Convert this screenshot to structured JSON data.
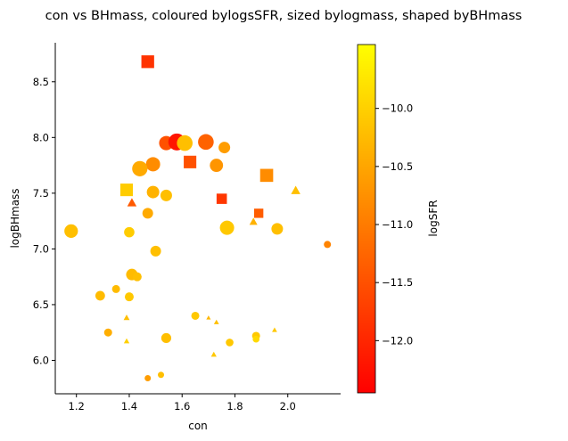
{
  "chart_data": {
    "type": "scatter",
    "title": "con vs BHmass, coloured bylogsSFR, sized bylogmass, shaped byBHmass",
    "xlabel": "con",
    "ylabel": "logBHmass",
    "xlim": [
      1.12,
      2.2
    ],
    "ylim": [
      5.7,
      8.85
    ],
    "x_ticks": [
      1.2,
      1.4,
      1.6,
      1.8,
      2.0
    ],
    "y_ticks": [
      6.0,
      6.5,
      7.0,
      7.5,
      8.0,
      8.5
    ],
    "grid": false,
    "colorbar": {
      "label": "logSFR",
      "range": [
        -12.45,
        -9.45
      ],
      "ticks": [
        -10.0,
        -10.5,
        -11.0,
        -11.5,
        -12.0
      ],
      "colormap": "autumn",
      "colors": [
        "#ff0000",
        "#ffff00"
      ]
    },
    "points": [
      {
        "x": 1.47,
        "y": 8.68,
        "c": -11.85,
        "s": 8.4,
        "m": "square"
      },
      {
        "x": 1.54,
        "y": 7.95,
        "c": -11.5,
        "s": 8.0,
        "m": "circle"
      },
      {
        "x": 1.58,
        "y": 7.96,
        "c": -12.2,
        "s": 9.5,
        "m": "circle"
      },
      {
        "x": 1.61,
        "y": 7.95,
        "c": -10.2,
        "s": 8.8,
        "m": "circle"
      },
      {
        "x": 1.69,
        "y": 7.96,
        "c": -11.3,
        "s": 8.8,
        "m": "circle"
      },
      {
        "x": 1.76,
        "y": 7.91,
        "c": -10.6,
        "s": 6.5,
        "m": "circle"
      },
      {
        "x": 1.49,
        "y": 7.76,
        "c": -10.8,
        "s": 8.0,
        "m": "circle"
      },
      {
        "x": 1.44,
        "y": 7.72,
        "c": -10.45,
        "s": 8.6,
        "m": "circle"
      },
      {
        "x": 1.63,
        "y": 7.78,
        "c": -11.5,
        "s": 8.3,
        "m": "square"
      },
      {
        "x": 1.73,
        "y": 7.75,
        "c": -10.7,
        "s": 7.4,
        "m": "circle"
      },
      {
        "x": 1.92,
        "y": 7.66,
        "c": -10.8,
        "s": 8.6,
        "m": "square"
      },
      {
        "x": 1.39,
        "y": 7.53,
        "c": -10.05,
        "s": 8.3,
        "m": "square"
      },
      {
        "x": 1.49,
        "y": 7.51,
        "c": -10.35,
        "s": 7.0,
        "m": "circle"
      },
      {
        "x": 1.54,
        "y": 7.48,
        "c": -10.2,
        "s": 6.5,
        "m": "circle"
      },
      {
        "x": 2.03,
        "y": 7.52,
        "c": -10.2,
        "s": 5.8,
        "m": "triangle"
      },
      {
        "x": 1.75,
        "y": 7.45,
        "c": -11.8,
        "s": 6.8,
        "m": "square"
      },
      {
        "x": 1.41,
        "y": 7.41,
        "c": -11.4,
        "s": 5.8,
        "m": "triangle"
      },
      {
        "x": 1.47,
        "y": 7.32,
        "c": -10.45,
        "s": 6.0,
        "m": "circle"
      },
      {
        "x": 1.89,
        "y": 7.32,
        "c": -11.35,
        "s": 6.1,
        "m": "square"
      },
      {
        "x": 1.87,
        "y": 7.24,
        "c": -10.35,
        "s": 5.0,
        "m": "triangle"
      },
      {
        "x": 1.18,
        "y": 7.16,
        "c": -10.2,
        "s": 7.6,
        "m": "circle"
      },
      {
        "x": 1.77,
        "y": 7.19,
        "c": -10.1,
        "s": 8.0,
        "m": "circle"
      },
      {
        "x": 1.96,
        "y": 7.18,
        "c": -10.2,
        "s": 6.5,
        "m": "circle"
      },
      {
        "x": 1.4,
        "y": 7.15,
        "c": -10.05,
        "s": 5.8,
        "m": "circle"
      },
      {
        "x": 2.15,
        "y": 7.04,
        "c": -10.9,
        "s": 4.0,
        "m": "circle"
      },
      {
        "x": 1.5,
        "y": 6.98,
        "c": -10.2,
        "s": 6.0,
        "m": "circle"
      },
      {
        "x": 1.41,
        "y": 6.77,
        "c": -10.25,
        "s": 6.5,
        "m": "circle"
      },
      {
        "x": 1.43,
        "y": 6.75,
        "c": -10.2,
        "s": 5.0,
        "m": "circle"
      },
      {
        "x": 1.35,
        "y": 6.64,
        "c": -10.25,
        "s": 4.5,
        "m": "circle"
      },
      {
        "x": 1.29,
        "y": 6.58,
        "c": -10.25,
        "s": 5.4,
        "m": "circle"
      },
      {
        "x": 1.4,
        "y": 6.57,
        "c": -10.1,
        "s": 5.0,
        "m": "circle"
      },
      {
        "x": 1.65,
        "y": 6.4,
        "c": -10.1,
        "s": 4.5,
        "m": "circle"
      },
      {
        "x": 1.39,
        "y": 6.38,
        "c": -10.2,
        "s": 3.8,
        "m": "triangle"
      },
      {
        "x": 1.7,
        "y": 6.38,
        "c": -10.3,
        "s": 2.8,
        "m": "triangle"
      },
      {
        "x": 1.73,
        "y": 6.34,
        "c": -10.2,
        "s": 3.2,
        "m": "triangle"
      },
      {
        "x": 1.32,
        "y": 6.25,
        "c": -10.4,
        "s": 4.5,
        "m": "circle"
      },
      {
        "x": 1.54,
        "y": 6.2,
        "c": -10.2,
        "s": 5.6,
        "m": "circle"
      },
      {
        "x": 1.88,
        "y": 6.22,
        "c": -10.1,
        "s": 4.5,
        "m": "circle"
      },
      {
        "x": 1.95,
        "y": 6.27,
        "c": -10.1,
        "s": 3.2,
        "m": "triangle"
      },
      {
        "x": 1.39,
        "y": 6.17,
        "c": -10.0,
        "s": 3.5,
        "m": "triangle"
      },
      {
        "x": 1.88,
        "y": 6.19,
        "c": -9.9,
        "s": 3.8,
        "m": "circle"
      },
      {
        "x": 1.78,
        "y": 6.16,
        "c": -10.1,
        "s": 4.3,
        "m": "circle"
      },
      {
        "x": 1.72,
        "y": 6.05,
        "c": -10.1,
        "s": 3.5,
        "m": "triangle"
      },
      {
        "x": 1.52,
        "y": 5.87,
        "c": -10.2,
        "s": 3.5,
        "m": "circle"
      },
      {
        "x": 1.47,
        "y": 5.84,
        "c": -10.6,
        "s": 3.5,
        "m": "circle"
      }
    ]
  }
}
